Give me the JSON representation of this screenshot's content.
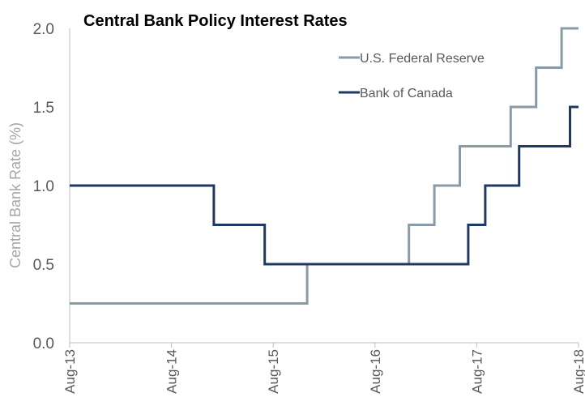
{
  "chart_data": {
    "type": "line",
    "step": true,
    "title": "Central Bank Policy Interest Rates",
    "xlabel": "",
    "ylabel": "Central Bank Rate (%)",
    "ylim": [
      0,
      2.0
    ],
    "yticks": [
      "0.0",
      "0.5",
      "1.0",
      "1.5",
      "2.0"
    ],
    "xlim": [
      "2013-08",
      "2018-08"
    ],
    "xticks": [
      "Aug-13",
      "Aug-14",
      "Aug-15",
      "Aug-16",
      "Aug-17",
      "Aug-18"
    ],
    "grid": false,
    "legend_position": "top-right",
    "series": [
      {
        "name": "U.S. Federal Reserve",
        "color": "#8a9ba8",
        "points": [
          [
            "2013-08",
            0.25
          ],
          [
            "2015-12",
            0.25
          ],
          [
            "2015-12",
            0.5
          ],
          [
            "2016-12",
            0.5
          ],
          [
            "2016-12",
            0.75
          ],
          [
            "2017-03",
            0.75
          ],
          [
            "2017-03",
            1.0
          ],
          [
            "2017-06",
            1.0
          ],
          [
            "2017-06",
            1.25
          ],
          [
            "2017-12",
            1.25
          ],
          [
            "2017-12",
            1.5
          ],
          [
            "2018-03",
            1.5
          ],
          [
            "2018-03",
            1.75
          ],
          [
            "2018-06",
            1.75
          ],
          [
            "2018-06",
            2.0
          ],
          [
            "2018-08",
            2.0
          ]
        ]
      },
      {
        "name": "Bank of Canada",
        "color": "#1f3864",
        "points": [
          [
            "2013-08",
            1.0
          ],
          [
            "2015-01",
            1.0
          ],
          [
            "2015-01",
            0.75
          ],
          [
            "2015-07",
            0.75
          ],
          [
            "2015-07",
            0.5
          ],
          [
            "2017-07",
            0.5
          ],
          [
            "2017-07",
            0.75
          ],
          [
            "2017-09",
            0.75
          ],
          [
            "2017-09",
            1.0
          ],
          [
            "2018-01",
            1.0
          ],
          [
            "2018-01",
            1.25
          ],
          [
            "2018-07",
            1.25
          ],
          [
            "2018-07",
            1.5
          ],
          [
            "2018-08",
            1.5
          ]
        ]
      }
    ]
  }
}
